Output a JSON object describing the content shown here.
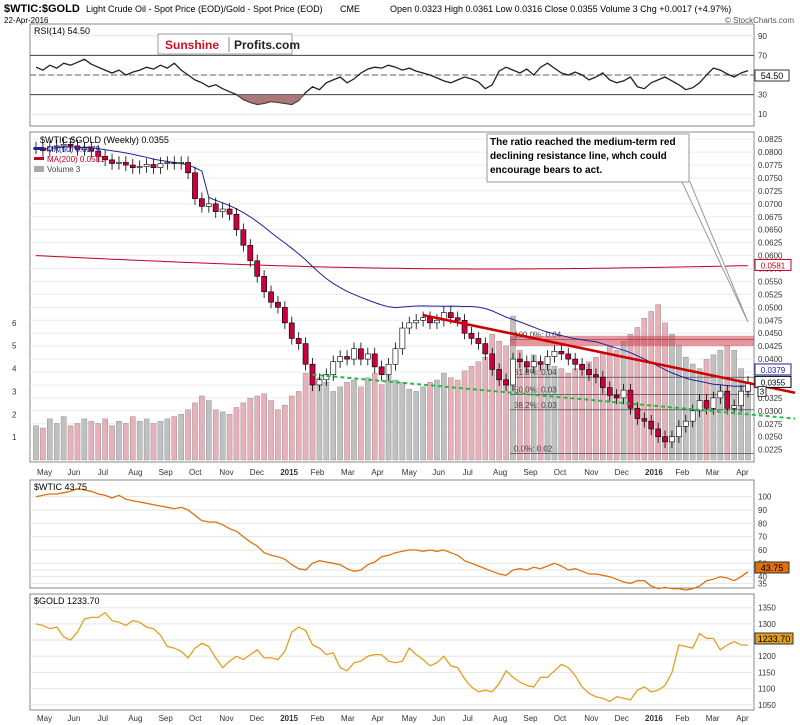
{
  "header": {
    "title": "$WTIC:$GOLD",
    "description": "Light Crude Oil - Spot Price (EOD)/Gold - Spot Price (EOD)",
    "exchange": "CME",
    "date": "22-Apr-2016",
    "quote": "Open 0.0323  High 0.0361  Low 0.0316  Close 0.0355  Volume 3  Chg +0.0017 (+4.97%)",
    "credit": "© StockCharts.com",
    "logo_red": "Sunshine",
    "logo_black": "Profits.com"
  },
  "colors": {
    "up": "#ffffff",
    "down": "#c8003c",
    "volume_up": "#c0c0c0",
    "volume_down": "#e8b0b8",
    "ma50": "#2020a0",
    "ma200": "#c00020",
    "resistance": "#cc0000",
    "support": "#22bb44",
    "wtic": "#e07010",
    "gold": "#e0a020"
  },
  "annotation": "The ratio reached the medium-term red declining resistance line, whch could encourage bears to act.",
  "chart_data": [
    {
      "type": "line",
      "title": "RSI(14) 54.50",
      "last_label": "54.50",
      "y_ticks": [
        10,
        30,
        50,
        70,
        90
      ],
      "ylim": [
        0,
        100
      ],
      "x": [
        "2014-05-02",
        "2014-05-09",
        "2014-05-16",
        "2014-05-23",
        "2014-05-30",
        "2014-06-06",
        "2014-06-13",
        "2014-06-20",
        "2014-06-27",
        "2014-07-04",
        "2014-07-11",
        "2014-07-18",
        "2014-07-25",
        "2014-08-01",
        "2014-08-08",
        "2014-08-15",
        "2014-08-22",
        "2014-08-29",
        "2014-09-05",
        "2014-09-12",
        "2014-09-19",
        "2014-09-26",
        "2014-10-03",
        "2014-10-10",
        "2014-10-17",
        "2014-10-24",
        "2014-10-31",
        "2014-11-07",
        "2014-11-14",
        "2014-11-21",
        "2014-11-28",
        "2014-12-05",
        "2014-12-12",
        "2014-12-19",
        "2014-12-26",
        "2015-01-02",
        "2015-01-09",
        "2015-01-16",
        "2015-01-23",
        "2015-01-30",
        "2015-02-06",
        "2015-02-13",
        "2015-02-20",
        "2015-02-27",
        "2015-03-06",
        "2015-03-13",
        "2015-03-20",
        "2015-03-27",
        "2015-04-03",
        "2015-04-10",
        "2015-04-17",
        "2015-04-24",
        "2015-05-01",
        "2015-05-08",
        "2015-05-15",
        "2015-05-22",
        "2015-05-29",
        "2015-06-05",
        "2015-06-12",
        "2015-06-19",
        "2015-06-26",
        "2015-07-03",
        "2015-07-10",
        "2015-07-17",
        "2015-07-24",
        "2015-07-31",
        "2015-08-07",
        "2015-08-14",
        "2015-08-21",
        "2015-08-28",
        "2015-09-04",
        "2015-09-11",
        "2015-09-18",
        "2015-09-25",
        "2015-10-02",
        "2015-10-09",
        "2015-10-16",
        "2015-10-23",
        "2015-10-30",
        "2015-11-06",
        "2015-11-13",
        "2015-11-20",
        "2015-11-27",
        "2015-12-04",
        "2015-12-11",
        "2015-12-18",
        "2015-12-25",
        "2016-01-01",
        "2016-01-08",
        "2016-01-15",
        "2016-01-22",
        "2016-01-29",
        "2016-02-05",
        "2016-02-12",
        "2016-02-19",
        "2016-02-26",
        "2016-03-04",
        "2016-03-11",
        "2016-03-18",
        "2016-03-25",
        "2016-04-01",
        "2016-04-08",
        "2016-04-15",
        "2016-04-22"
      ],
      "series": [
        {
          "name": "RSI(14)",
          "values": [
            58,
            55,
            60,
            57,
            62,
            60,
            63,
            66,
            61,
            58,
            55,
            52,
            55,
            50,
            53,
            55,
            58,
            56,
            60,
            57,
            62,
            55,
            50,
            45,
            42,
            38,
            40,
            36,
            33,
            30,
            25,
            22,
            20,
            21,
            23,
            22,
            21,
            20,
            24,
            32,
            38,
            35,
            42,
            45,
            48,
            42,
            46,
            52,
            56,
            58,
            57,
            60,
            58,
            55,
            57,
            54,
            52,
            50,
            47,
            44,
            42,
            45,
            48,
            46,
            43,
            36,
            40,
            54,
            58,
            55,
            52,
            56,
            50,
            58,
            62,
            57,
            52,
            50,
            53,
            50,
            45,
            48,
            52,
            45,
            42,
            44,
            48,
            38,
            36,
            42,
            45,
            48,
            44,
            40,
            35,
            37,
            42,
            50,
            57,
            55,
            51,
            48,
            52,
            54.5
          ]
        }
      ]
    },
    {
      "type": "candlestick",
      "title": "$WTIC:$GOLD (Weekly) 0.0355",
      "legend": [
        "MA(50) 0.0379",
        "MA(200) 0.0581",
        "Volume 3"
      ],
      "price_labels": [
        "0.0581",
        "0.0379",
        "0.0355"
      ],
      "ylim": [
        0.0205,
        0.0835
      ],
      "y_ticks": [
        0.0225,
        0.025,
        0.0275,
        0.03,
        0.0325,
        0.035,
        0.0375,
        0.04,
        0.0425,
        0.045,
        0.0475,
        0.05,
        0.0525,
        0.055,
        0.0575,
        0.06,
        0.0625,
        0.065,
        0.0675,
        0.07,
        0.0725,
        0.075,
        0.0775,
        0.08,
        0.0825
      ],
      "y_tick_labels": [
        "0.0225",
        "0.0250",
        "0.0275",
        "0.0300",
        "0.0325",
        "0.0350",
        "0.0375",
        "0.0400",
        "0.0425",
        "0.0450",
        "0.0475",
        "0.0500",
        "0.0525",
        "0.0550",
        "0.0575",
        "0.0600",
        "0.0625",
        "0.0650",
        "0.0675",
        "0.0700",
        "0.0725",
        "0.0750",
        "0.0775",
        "0.0800",
        "0.0825"
      ],
      "volume_ticks": [
        1,
        2,
        3,
        4,
        5,
        6
      ],
      "volume_max": 7,
      "close": [
        0.0808,
        0.0803,
        0.081,
        0.0812,
        0.0815,
        0.0812,
        0.0805,
        0.0808,
        0.0802,
        0.0792,
        0.0785,
        0.0778,
        0.078,
        0.0775,
        0.077,
        0.0772,
        0.0776,
        0.077,
        0.0778,
        0.078,
        0.0778,
        0.078,
        0.076,
        0.071,
        0.0695,
        0.07,
        0.0685,
        0.069,
        0.068,
        0.065,
        0.062,
        0.059,
        0.056,
        0.053,
        0.051,
        0.05,
        0.047,
        0.044,
        0.043,
        0.039,
        0.035,
        0.036,
        0.037,
        0.0395,
        0.0405,
        0.04,
        0.042,
        0.04,
        0.041,
        0.0385,
        0.037,
        0.039,
        0.042,
        0.046,
        0.047,
        0.0475,
        0.048,
        0.047,
        0.0475,
        0.049,
        0.048,
        0.0475,
        0.045,
        0.044,
        0.043,
        0.041,
        0.038,
        0.036,
        0.035,
        0.04,
        0.0395,
        0.0385,
        0.0395,
        0.039,
        0.0405,
        0.0415,
        0.041,
        0.04,
        0.039,
        0.038,
        0.037,
        0.0365,
        0.0345,
        0.033,
        0.0325,
        0.034,
        0.0305,
        0.0285,
        0.028,
        0.0265,
        0.025,
        0.024,
        0.025,
        0.027,
        0.028,
        0.03,
        0.032,
        0.0305,
        0.0325,
        0.0338,
        0.0305,
        0.031,
        0.0338,
        0.0355
      ],
      "volume": [
        1.5,
        1.4,
        1.8,
        1.6,
        1.9,
        1.5,
        1.6,
        1.8,
        1.7,
        1.6,
        1.8,
        1.5,
        1.7,
        1.6,
        1.9,
        1.7,
        1.8,
        1.6,
        1.7,
        1.8,
        1.9,
        2.0,
        2.2,
        2.5,
        2.8,
        2.6,
        2.2,
        2.1,
        2.0,
        2.3,
        2.5,
        2.7,
        2.8,
        2.9,
        2.6,
        2.2,
        2.4,
        2.8,
        3.0,
        3.8,
        4.2,
        3.6,
        3.4,
        3.0,
        3.2,
        3.4,
        3.5,
        3.2,
        3.6,
        3.8,
        3.3,
        3.7,
        3.5,
        3.4,
        3.1,
        3.0,
        3.2,
        3.4,
        3.5,
        3.8,
        3.6,
        3.5,
        3.9,
        4.1,
        4.3,
        4.5,
        5.5,
        5.2,
        5.0,
        6.3,
        4.8,
        4.2,
        4.6,
        4.3,
        4.4,
        4.1,
        4.0,
        3.8,
        4.0,
        4.1,
        4.3,
        4.5,
        4.7,
        5.0,
        4.8,
        5.2,
        5.5,
        5.8,
        6.2,
        6.5,
        6.8,
        6.0,
        5.5,
        5.0,
        4.5,
        4.2,
        4.0,
        4.4,
        4.6,
        4.8,
        5.0,
        4.8,
        4.0,
        3.3
      ]
    },
    {
      "type": "line",
      "title": "$WTIC 43.75",
      "last_label": "43.75",
      "ylim": [
        33,
        108
      ],
      "y_ticks": [
        35,
        40,
        45,
        50,
        60,
        70,
        80,
        90,
        100
      ],
      "series": [
        {
          "name": "$WTIC",
          "values": [
            100,
            101,
            102,
            102,
            103,
            104,
            106,
            105,
            104,
            102,
            101,
            99,
            101,
            98,
            97,
            96,
            95,
            94,
            93,
            92,
            91,
            92,
            90,
            86,
            82,
            81,
            81,
            79,
            76,
            74,
            70,
            66,
            63,
            58,
            56,
            55,
            53,
            49,
            46,
            45,
            50,
            52,
            51,
            50,
            49,
            46,
            44,
            45,
            49,
            51,
            55,
            56,
            58,
            59,
            60,
            60,
            59,
            60,
            59,
            60,
            58,
            56,
            52,
            50,
            48,
            46,
            44,
            42,
            41,
            45,
            46,
            45,
            47,
            46,
            48,
            50,
            48,
            45,
            46,
            44,
            42,
            42,
            41,
            40,
            38,
            36,
            35,
            37,
            37,
            33,
            31,
            32,
            31,
            31,
            30,
            31,
            33,
            37,
            38,
            40,
            39,
            37,
            40,
            43.75
          ]
        }
      ]
    },
    {
      "type": "line",
      "title": "$GOLD 1233.70",
      "last_label": "1233.70",
      "ylim": [
        1040,
        1380
      ],
      "y_ticks": [
        1050,
        1100,
        1150,
        1200,
        1250,
        1300,
        1350
      ],
      "series": [
        {
          "name": "$GOLD",
          "values": [
            1300,
            1295,
            1285,
            1290,
            1260,
            1250,
            1275,
            1315,
            1320,
            1320,
            1335,
            1310,
            1305,
            1295,
            1310,
            1305,
            1290,
            1285,
            1265,
            1230,
            1225,
            1215,
            1195,
            1225,
            1240,
            1230,
            1195,
            1165,
            1185,
            1200,
            1190,
            1205,
            1220,
            1195,
            1195,
            1190,
            1215,
            1275,
            1290,
            1280,
            1235,
            1225,
            1205,
            1210,
            1165,
            1155,
            1180,
            1185,
            1200,
            1205,
            1205,
            1185,
            1180,
            1185,
            1225,
            1205,
            1190,
            1170,
            1180,
            1200,
            1170,
            1165,
            1130,
            1105,
            1090,
            1095,
            1090,
            1115,
            1155,
            1135,
            1120,
            1110,
            1105,
            1135,
            1135,
            1155,
            1175,
            1165,
            1140,
            1105,
            1085,
            1075,
            1070,
            1060,
            1075,
            1070,
            1065,
            1095,
            1105,
            1090,
            1095,
            1110,
            1150,
            1235,
            1230,
            1225,
            1270,
            1255,
            1255,
            1220,
            1235,
            1245,
            1235,
            1233.7
          ]
        }
      ]
    }
  ],
  "x_axis_labels": [
    "May",
    "Jun",
    "Jul",
    "Aug",
    "Sep",
    "Oct",
    "Nov",
    "Dec",
    "2015",
    "Feb",
    "Mar",
    "Apr",
    "May",
    "Jun",
    "Jul",
    "Aug",
    "Sep",
    "Oct",
    "Nov",
    "Dec",
    "2016",
    "Feb",
    "Mar",
    "Apr"
  ],
  "fibonacci": {
    "levels": [
      {
        "label": "100.0%: 0.04"
      },
      {
        "label": "61.8%: 0.04"
      },
      {
        "label": "50.0%: 0.03"
      },
      {
        "label": "38.2%: 0.03"
      },
      {
        "label": "0.0%: 0.02"
      }
    ]
  }
}
